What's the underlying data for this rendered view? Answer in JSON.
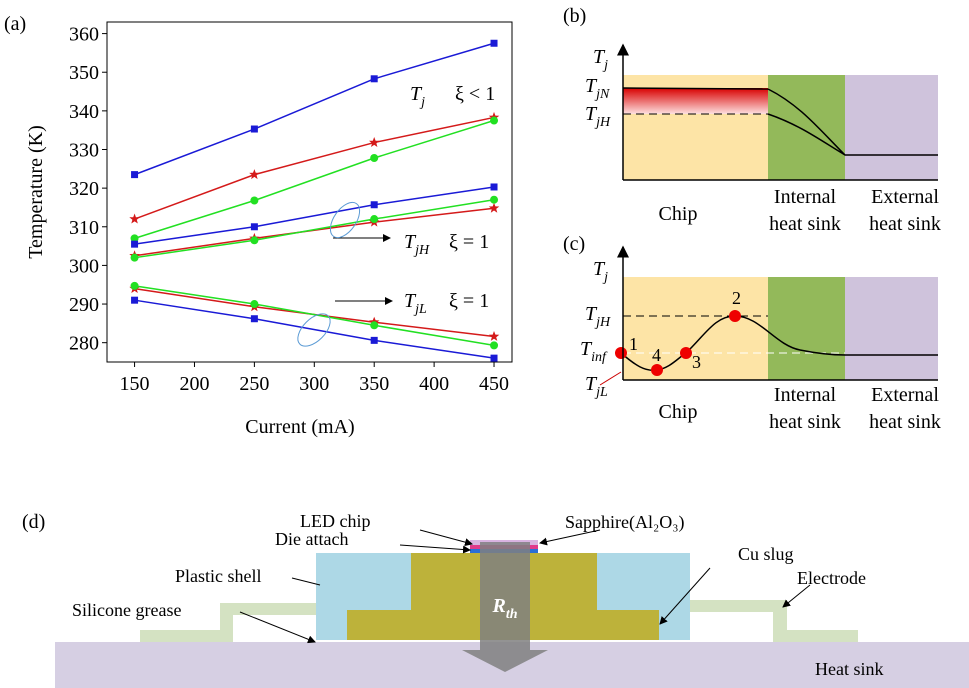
{
  "chart_data": {
    "type": "line",
    "panel_label": "(a)",
    "x_label": "Current (mA)",
    "y_label": "Temperature (K)",
    "x": [
      150,
      250,
      350,
      450
    ],
    "xlim": [
      127,
      465
    ],
    "xticks": [
      150,
      200,
      250,
      300,
      350,
      400,
      450
    ],
    "ylim": [
      275,
      363
    ],
    "yticks": [
      280,
      290,
      300,
      310,
      320,
      330,
      340,
      350,
      360
    ],
    "series": [
      {
        "color": "#1a1ad6",
        "marker": "square",
        "values": [
          323.5,
          335.3,
          348.3,
          357.5
        ]
      },
      {
        "color": "#d41a1a",
        "marker": "star",
        "values": [
          312,
          323.5,
          331.8,
          338.3
        ]
      },
      {
        "color": "#22e022",
        "marker": "circle",
        "values": [
          307,
          316.8,
          327.8,
          337.5
        ]
      },
      {
        "color": "#1a1ad6",
        "marker": "square",
        "values": [
          305.5,
          310,
          315.7,
          320.3
        ]
      },
      {
        "color": "#d41a1a",
        "marker": "star",
        "values": [
          302.5,
          307,
          311.2,
          314.8
        ]
      },
      {
        "color": "#22e022",
        "marker": "circle",
        "values": [
          302,
          306.5,
          312,
          317
        ]
      },
      {
        "color": "#1a1ad6",
        "marker": "square",
        "values": [
          291,
          286.2,
          280.6,
          276
        ]
      },
      {
        "color": "#d41a1a",
        "marker": "star",
        "values": [
          294,
          289.3,
          285.3,
          281.6
        ]
      },
      {
        "color": "#22e022",
        "marker": "circle",
        "values": [
          294.7,
          290,
          284.5,
          279.3
        ]
      }
    ],
    "annotations": [
      {
        "symbol": "T",
        "sub": "j",
        "text": "ξ < 1"
      },
      {
        "symbol": "T",
        "sub": "jH",
        "text": "ξ = 1"
      },
      {
        "symbol": "T",
        "sub": "jL",
        "text": "ξ = 1"
      }
    ]
  },
  "panel_b": {
    "label": "(b)",
    "axis": {
      "symbol": "T",
      "sub": "j"
    },
    "levels": [
      {
        "symbol": "T",
        "sub": "jN"
      },
      {
        "symbol": "T",
        "sub": "jH"
      }
    ],
    "regions": [
      [
        "Chip"
      ],
      [
        "Internal",
        "heat sink"
      ],
      [
        "External",
        "heat sink"
      ]
    ]
  },
  "panel_c": {
    "label": "(c)",
    "axis": {
      "symbol": "T",
      "sub": "j"
    },
    "levels": [
      {
        "symbol": "T",
        "sub": "jH"
      },
      {
        "symbol": "T",
        "sub": "inf"
      },
      {
        "symbol": "T",
        "sub": "jL"
      }
    ],
    "points": [
      "1",
      "2",
      "3",
      "4"
    ],
    "regions": [
      [
        "Chip"
      ],
      [
        "Internal",
        "heat sink"
      ],
      [
        "External",
        "heat sink"
      ]
    ]
  },
  "panel_d": {
    "label": "(d)",
    "led_chip": "LED chip",
    "die_attach": "Die attach",
    "sapphire": "Sapphire(Al₂O₃)",
    "cu_slug": "Cu slug",
    "plastic_shell": "Plastic shell",
    "electrode": "Electrode",
    "silicone_grease": "Silicone grease",
    "heat_sink": "Heat sink",
    "rth": {
      "symbol": "R",
      "sub": "th"
    }
  }
}
